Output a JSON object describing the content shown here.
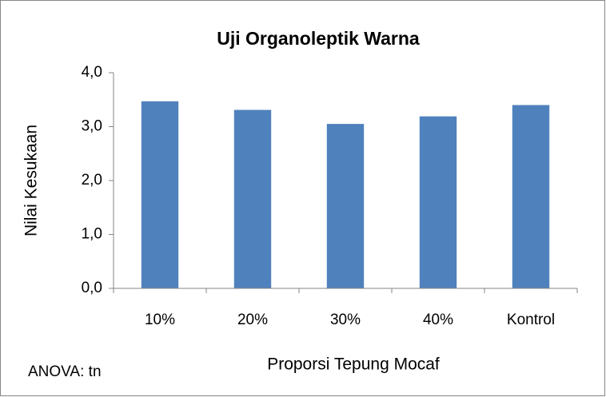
{
  "chart_data": {
    "type": "bar",
    "title": "Uji Organoleptik Warna",
    "x_label": "Proporsi Tepung Mocaf",
    "y_label": "Nilai Kesukaan",
    "annotation": "ANOVA: tn",
    "categories": [
      "10%",
      "20%",
      "30%",
      "40%",
      "Kontrol"
    ],
    "values": [
      3.47,
      3.31,
      3.05,
      3.19,
      3.4
    ],
    "color": "#4f81bd",
    "ylim": [
      0,
      4
    ],
    "yticks": [
      {
        "value": 0,
        "label": "0,0"
      },
      {
        "value": 1,
        "label": "1,0"
      },
      {
        "value": 2,
        "label": "2,0"
      },
      {
        "value": 3,
        "label": "3,0"
      },
      {
        "value": 4,
        "label": "4,0"
      }
    ],
    "grid": false
  }
}
